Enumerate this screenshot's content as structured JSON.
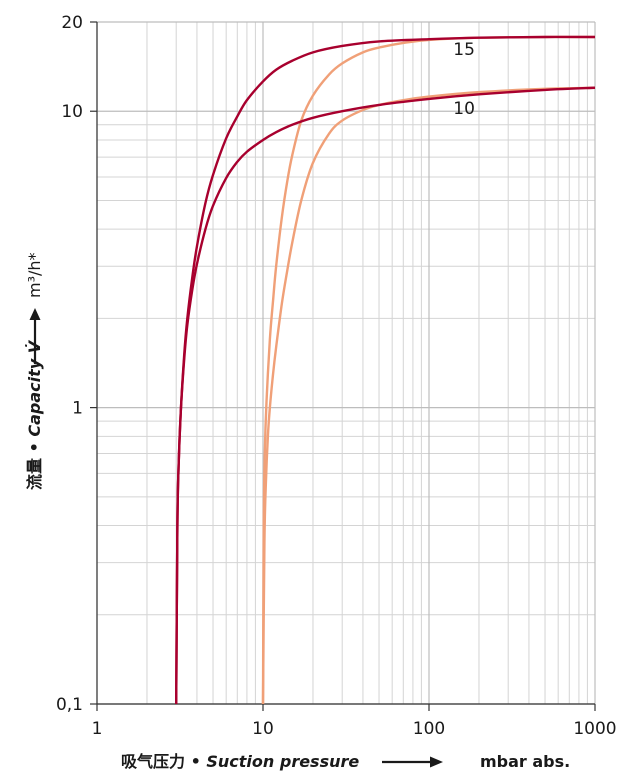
{
  "chart_data": {
    "type": "line",
    "x_scale": "log",
    "y_scale": "log",
    "xlim": [
      1,
      1000
    ],
    "ylim": [
      0.1,
      20
    ],
    "grid": true,
    "x_ticks": [
      {
        "value": 1,
        "label": "1"
      },
      {
        "value": 10,
        "label": "10"
      },
      {
        "value": 100,
        "label": "100"
      },
      {
        "value": 1000,
        "label": "1000"
      }
    ],
    "y_ticks": [
      {
        "value": 0.1,
        "label": "0,1"
      },
      {
        "value": 1,
        "label": "1"
      },
      {
        "value": 10,
        "label": "10"
      },
      {
        "value": 20,
        "label": "20"
      }
    ],
    "xlabel": {
      "cn": "吸气压力 • ",
      "en": "Suction pressure",
      "unit": "mbar abs."
    },
    "ylabel": {
      "cn": "流量 • ",
      "en": "Capacity V̇",
      "unit": "m³/h*"
    },
    "series": [
      {
        "name": "15",
        "color": "#a8002e",
        "x": [
          3,
          3.05,
          3.1,
          3.2,
          3.35,
          3.5,
          3.75,
          4,
          4.5,
          5,
          6,
          7,
          8,
          10,
          12,
          15,
          20,
          30,
          50,
          100,
          200,
          500,
          1000
        ],
        "y": [
          0.1,
          0.4,
          0.63,
          0.98,
          1.5,
          2.0,
          2.75,
          3.5,
          4.9,
          6.1,
          8.1,
          9.6,
          10.9,
          12.6,
          13.8,
          14.8,
          15.8,
          16.6,
          17.2,
          17.5,
          17.7,
          17.8,
          17.8
        ]
      },
      {
        "name": "10",
        "color": "#a8002e",
        "x": [
          3,
          3.05,
          3.1,
          3.2,
          3.35,
          3.5,
          3.75,
          4,
          4.5,
          5,
          6,
          7,
          8,
          10,
          12,
          15,
          20,
          30,
          50,
          100,
          200,
          500,
          1000
        ],
        "y": [
          0.1,
          0.4,
          0.63,
          0.98,
          1.45,
          1.9,
          2.5,
          3.05,
          4.0,
          4.8,
          5.95,
          6.75,
          7.3,
          8.0,
          8.5,
          9.0,
          9.5,
          10.0,
          10.5,
          11.0,
          11.4,
          11.8,
          12.0
        ]
      },
      {
        "name": "15",
        "color": "#f0a078",
        "x": [
          10,
          10.1,
          10.25,
          10.5,
          11,
          11.5,
          12,
          13,
          14,
          15,
          17,
          20,
          25,
          30,
          40,
          50,
          70,
          100,
          200,
          500,
          1000
        ],
        "y": [
          0.1,
          0.4,
          0.7,
          1.05,
          1.7,
          2.3,
          3.0,
          4.4,
          5.8,
          7.1,
          9.3,
          11.3,
          13.3,
          14.5,
          15.8,
          16.4,
          17.0,
          17.4,
          17.7,
          17.8,
          17.8
        ]
      },
      {
        "name": "10",
        "color": "#f0a078",
        "x": [
          10,
          10.2,
          10.4,
          10.7,
          11,
          11.5,
          12,
          13,
          14,
          15,
          17,
          20,
          25,
          30,
          40,
          50,
          70,
          100,
          200,
          500,
          1000
        ],
        "y": [
          0.1,
          0.35,
          0.55,
          0.8,
          1.0,
          1.3,
          1.6,
          2.25,
          2.9,
          3.6,
          5.0,
          6.7,
          8.4,
          9.3,
          10.1,
          10.5,
          10.9,
          11.2,
          11.6,
          11.9,
          12.0
        ]
      }
    ],
    "annotations": [
      {
        "text": "15",
        "x": 140,
        "y": 15.5
      },
      {
        "text": "10",
        "x": 140,
        "y": 9.8
      }
    ]
  }
}
